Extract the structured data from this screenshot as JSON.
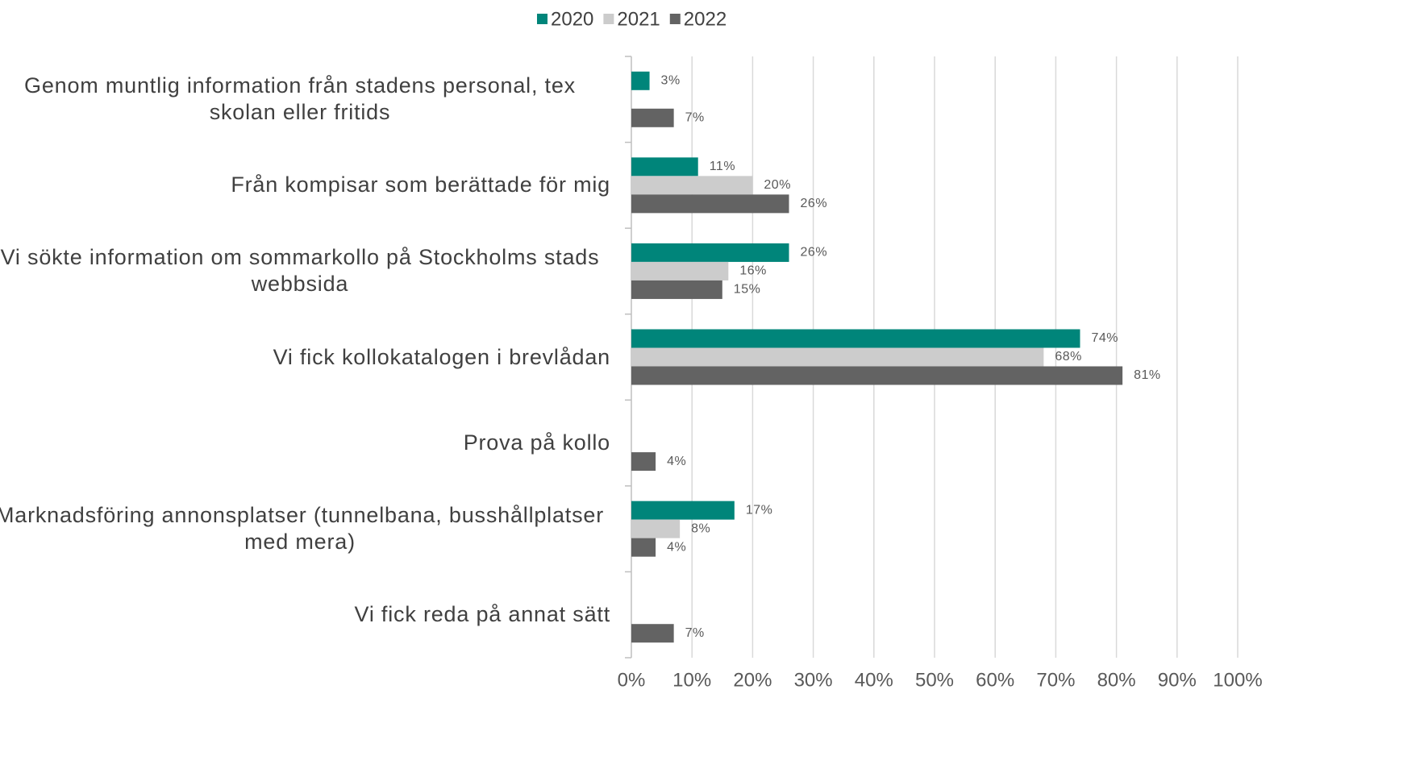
{
  "chart_data": {
    "type": "bar",
    "orientation": "horizontal",
    "categories": [
      "Genom muntlig information från stadens personal, tex skolan eller fritids",
      "Från kompisar som berättade för mig",
      "Vi sökte information om sommarkollo på Stockholms stads webbsida",
      "Vi fick kollokatalogen i brevlådan",
      "Prova på kollo",
      "Marknadsföring annonsplatser (tunnelbana, busshållplatser med mera)",
      "Vi fick reda på annat sätt"
    ],
    "series": [
      {
        "name": "2020",
        "color": "#00857a",
        "values": [
          3,
          11,
          26,
          74,
          null,
          17,
          null
        ],
        "value_labels": [
          "3%",
          "11%",
          "26%",
          "74%",
          null,
          "17%",
          null
        ]
      },
      {
        "name": "2021",
        "color": "#cccccc",
        "values": [
          null,
          20,
          16,
          68,
          null,
          8,
          null
        ],
        "value_labels": [
          null,
          "20%",
          "16%",
          "68%",
          null,
          "8%",
          null
        ]
      },
      {
        "name": "2022",
        "color": "#636363",
        "values": [
          7,
          26,
          15,
          81,
          4,
          4,
          7
        ],
        "value_labels": [
          "7%",
          "26%",
          "15%",
          "81%",
          "4%",
          "4%",
          "7%"
        ]
      }
    ],
    "xlim": [
      0,
      100
    ],
    "xticks": [
      {
        "value": 0,
        "label": "0%"
      },
      {
        "value": 10,
        "label": "10%"
      },
      {
        "value": 20,
        "label": "20%"
      },
      {
        "value": 30,
        "label": "30%"
      },
      {
        "value": 40,
        "label": "40%"
      },
      {
        "value": 50,
        "label": "50%"
      },
      {
        "value": 60,
        "label": "60%"
      },
      {
        "value": 70,
        "label": "70%"
      },
      {
        "value": 80,
        "label": "80%"
      },
      {
        "value": 90,
        "label": "90%"
      },
      {
        "value": 100,
        "label": "100%"
      }
    ],
    "grid": true,
    "legend": "top"
  }
}
